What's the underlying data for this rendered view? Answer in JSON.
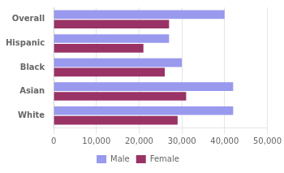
{
  "chart_data": {
    "type": "bar",
    "orientation": "horizontal",
    "categories": [
      "Overall",
      "Hispanic",
      "Black",
      "Asian",
      "White"
    ],
    "series": [
      {
        "name": "Male",
        "color": "#9999ee",
        "values": [
          40000,
          27000,
          30000,
          42000,
          42000
        ]
      },
      {
        "name": "Female",
        "color": "#993366",
        "values": [
          27000,
          21000,
          26000,
          31000,
          29000
        ]
      }
    ],
    "xlim": [
      0,
      50000
    ],
    "xticks": [
      0,
      {
        "value": 10000,
        "label": "10,000"
      },
      {
        "value": 20000,
        "label": "20,000"
      },
      {
        "value": 30000,
        "label": "30,000"
      },
      {
        "value": 40000,
        "label": "40,000"
      },
      {
        "value": 50000,
        "label": "50,000"
      }
    ],
    "grid": true,
    "legend": "bottom"
  }
}
